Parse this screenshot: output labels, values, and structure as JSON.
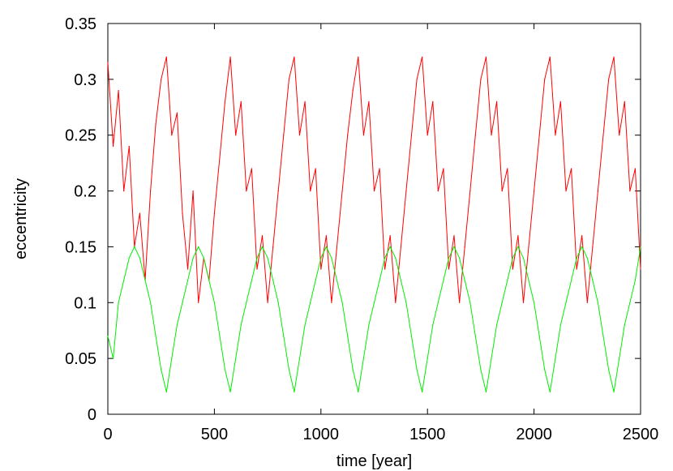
{
  "chart_data": {
    "type": "line",
    "title": "",
    "xlabel": "time [year]",
    "ylabel": "eccentricity",
    "xlim": [
      0,
      2500
    ],
    "ylim": [
      0,
      0.35
    ],
    "xticks": [
      0,
      500,
      1000,
      1500,
      2000,
      2500
    ],
    "xtick_labels": [
      "0",
      "500",
      "1000",
      "1500",
      "2000",
      "2500"
    ],
    "yticks": [
      0,
      0.05,
      0.1,
      0.15,
      0.2,
      0.25,
      0.3,
      0.35
    ],
    "ytick_labels": [
      "0",
      "0.05",
      "0.1",
      "0.15",
      "0.2",
      "0.25",
      "0.3",
      "0.35"
    ],
    "grid": false,
    "legend": "none",
    "series": [
      {
        "color": "#ff0000",
        "description_values": "sampled envelope points (x, y) of an oscillating signal",
        "x": [
          0,
          25,
          50,
          75,
          100,
          125,
          150,
          175,
          200,
          225,
          250,
          275,
          300,
          325,
          350,
          375,
          400,
          425,
          450,
          475,
          500,
          525,
          550,
          575,
          600,
          625,
          650,
          675,
          700,
          725,
          750,
          775,
          800,
          825,
          850,
          875,
          900,
          925,
          950,
          975,
          1000,
          1025,
          1050,
          1075,
          1100,
          1125,
          1150,
          1175,
          1200,
          1225,
          1250,
          1275,
          1300,
          1325,
          1350,
          1375,
          1400,
          1425,
          1450,
          1475,
          1500,
          1525,
          1550,
          1575,
          1600,
          1625,
          1650,
          1675,
          1700,
          1725,
          1750,
          1775,
          1800,
          1825,
          1850,
          1875,
          1900,
          1925,
          1950,
          1975,
          2000,
          2025,
          2050,
          2075,
          2100,
          2125,
          2150,
          2175,
          2200,
          2225,
          2250,
          2275,
          2300,
          2325,
          2350,
          2375,
          2400,
          2425,
          2450,
          2475,
          2500
        ],
        "y": [
          0.315,
          0.24,
          0.29,
          0.2,
          0.24,
          0.15,
          0.18,
          0.12,
          0.2,
          0.26,
          0.3,
          0.32,
          0.25,
          0.27,
          0.18,
          0.13,
          0.2,
          0.1,
          0.14,
          0.12,
          0.18,
          0.23,
          0.28,
          0.32,
          0.25,
          0.28,
          0.2,
          0.22,
          0.13,
          0.16,
          0.1,
          0.15,
          0.2,
          0.25,
          0.3,
          0.32,
          0.25,
          0.28,
          0.2,
          0.22,
          0.13,
          0.16,
          0.1,
          0.15,
          0.2,
          0.25,
          0.29,
          0.32,
          0.25,
          0.28,
          0.2,
          0.22,
          0.13,
          0.16,
          0.1,
          0.15,
          0.2,
          0.25,
          0.3,
          0.32,
          0.25,
          0.28,
          0.2,
          0.22,
          0.13,
          0.16,
          0.1,
          0.15,
          0.2,
          0.25,
          0.3,
          0.32,
          0.25,
          0.28,
          0.2,
          0.22,
          0.13,
          0.16,
          0.1,
          0.15,
          0.2,
          0.25,
          0.3,
          0.32,
          0.25,
          0.28,
          0.2,
          0.22,
          0.13,
          0.16,
          0.1,
          0.15,
          0.2,
          0.25,
          0.3,
          0.32,
          0.25,
          0.28,
          0.2,
          0.22,
          0.13
        ]
      },
      {
        "color": "#00ee00",
        "x": [
          0,
          25,
          50,
          75,
          100,
          125,
          150,
          175,
          200,
          225,
          250,
          275,
          300,
          325,
          350,
          375,
          400,
          425,
          450,
          475,
          500,
          525,
          550,
          575,
          600,
          625,
          650,
          675,
          700,
          725,
          750,
          775,
          800,
          825,
          850,
          875,
          900,
          925,
          950,
          975,
          1000,
          1025,
          1050,
          1075,
          1100,
          1125,
          1150,
          1175,
          1200,
          1225,
          1250,
          1275,
          1300,
          1325,
          1350,
          1375,
          1400,
          1425,
          1450,
          1475,
          1500,
          1525,
          1550,
          1575,
          1600,
          1625,
          1650,
          1675,
          1700,
          1725,
          1750,
          1775,
          1800,
          1825,
          1850,
          1875,
          1900,
          1925,
          1950,
          1975,
          2000,
          2025,
          2050,
          2075,
          2100,
          2125,
          2150,
          2175,
          2200,
          2225,
          2250,
          2275,
          2300,
          2325,
          2350,
          2375,
          2400,
          2425,
          2450,
          2475,
          2500
        ],
        "y": [
          0.07,
          0.05,
          0.1,
          0.12,
          0.14,
          0.15,
          0.14,
          0.12,
          0.1,
          0.07,
          0.04,
          0.02,
          0.05,
          0.08,
          0.1,
          0.12,
          0.14,
          0.15,
          0.14,
          0.12,
          0.1,
          0.07,
          0.04,
          0.02,
          0.05,
          0.08,
          0.1,
          0.12,
          0.14,
          0.15,
          0.14,
          0.12,
          0.1,
          0.07,
          0.04,
          0.02,
          0.05,
          0.08,
          0.1,
          0.12,
          0.14,
          0.15,
          0.14,
          0.12,
          0.1,
          0.07,
          0.04,
          0.02,
          0.05,
          0.08,
          0.1,
          0.12,
          0.14,
          0.15,
          0.14,
          0.12,
          0.1,
          0.07,
          0.04,
          0.02,
          0.05,
          0.08,
          0.1,
          0.12,
          0.14,
          0.15,
          0.14,
          0.12,
          0.1,
          0.07,
          0.04,
          0.02,
          0.05,
          0.08,
          0.1,
          0.12,
          0.14,
          0.15,
          0.14,
          0.12,
          0.1,
          0.07,
          0.04,
          0.02,
          0.05,
          0.08,
          0.1,
          0.12,
          0.14,
          0.15,
          0.14,
          0.12,
          0.1,
          0.07,
          0.04,
          0.02,
          0.05,
          0.08,
          0.1,
          0.12,
          0.15
        ]
      }
    ]
  }
}
